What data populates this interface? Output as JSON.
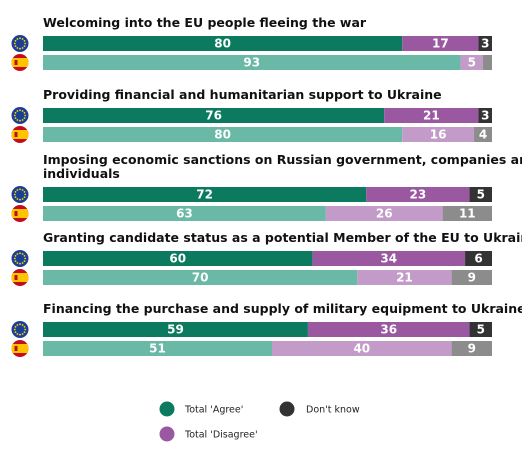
{
  "chart_data": {
    "type": "bar",
    "stacked": true,
    "orientation": "horizontal",
    "title": "",
    "xlim": [
      0,
      100
    ],
    "grid": false,
    "legend_placement": "bottom",
    "colors": {
      "eu_agree": "#0b7a5f",
      "es_agree": "#6ab8a6",
      "eu_disagree": "#9a58a1",
      "es_disagree": "#c39bc9",
      "eu_dontknow": "#333333",
      "es_dontknow": "#8c8c8c"
    },
    "legend": [
      {
        "label": "Total 'Agree'",
        "color": "#0b7a5f"
      },
      {
        "label": "Don't know",
        "color": "#333333"
      },
      {
        "label": "Total 'Disagree'",
        "color": "#9a58a1"
      }
    ],
    "groups": [
      {
        "question": "Welcoming into the EU people fleeing the war",
        "rows": [
          {
            "flag": "eu-flag-icon",
            "agree": 80,
            "disagree": 17,
            "dont_know": 3,
            "labels": [
              "80",
              "17",
              "3"
            ]
          },
          {
            "flag": "spain-flag-icon",
            "agree": 93,
            "disagree": 5,
            "dont_know": 2,
            "labels": [
              "93",
              "5",
              ""
            ]
          }
        ]
      },
      {
        "question": "Providing financial and humanitarian support to Ukraine",
        "rows": [
          {
            "flag": "eu-flag-icon",
            "agree": 76,
            "disagree": 21,
            "dont_know": 3,
            "labels": [
              "76",
              "21",
              "3"
            ]
          },
          {
            "flag": "spain-flag-icon",
            "agree": 80,
            "disagree": 16,
            "dont_know": 4,
            "labels": [
              "80",
              "16",
              "4"
            ]
          }
        ]
      },
      {
        "question": "Imposing economic sanctions on Russian government, companies and individuals",
        "question_lines": [
          "Imposing economic sanctions on Russian government, companies and",
          "individuals"
        ],
        "rows": [
          {
            "flag": "eu-flag-icon",
            "agree": 72,
            "disagree": 23,
            "dont_know": 5,
            "labels": [
              "72",
              "23",
              "5"
            ]
          },
          {
            "flag": "spain-flag-icon",
            "agree": 63,
            "disagree": 26,
            "dont_know": 11,
            "labels": [
              "63",
              "26",
              "11"
            ]
          }
        ]
      },
      {
        "question": "Granting candidate status as a potential Member of the EU to Ukraine",
        "rows": [
          {
            "flag": "eu-flag-icon",
            "agree": 60,
            "disagree": 34,
            "dont_know": 6,
            "labels": [
              "60",
              "34",
              "6"
            ]
          },
          {
            "flag": "spain-flag-icon",
            "agree": 70,
            "disagree": 21,
            "dont_know": 9,
            "labels": [
              "70",
              "21",
              "9"
            ]
          }
        ]
      },
      {
        "question": "Financing the purchase and supply of military equipment to Ukraine",
        "rows": [
          {
            "flag": "eu-flag-icon",
            "agree": 59,
            "disagree": 36,
            "dont_know": 5,
            "labels": [
              "59",
              "36",
              "5"
            ]
          },
          {
            "flag": "spain-flag-icon",
            "agree": 51,
            "disagree": 40,
            "dont_know": 9,
            "labels": [
              "51",
              "40",
              "9"
            ]
          }
        ]
      }
    ]
  }
}
